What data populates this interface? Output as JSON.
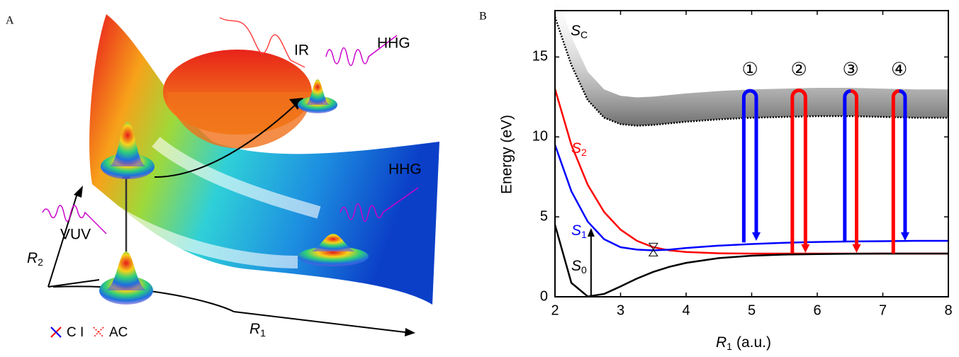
{
  "illustration": {
    "panel_label": "A",
    "ir": "IR",
    "hhg_top": "HHG",
    "hhg_bottom": "HHG",
    "vuv": "VUV",
    "r2": "R",
    "r2_sub": "2",
    "r1": "R",
    "r1_sub": "1",
    "ci": "C I",
    "ac": "AC"
  },
  "chart_data": {
    "type": "line",
    "panel_label": "B",
    "ylabel": "Energy (eV)",
    "xlabel": "R",
    "xlabel_sub": "1",
    "xlabel_unit": "(a.u.)",
    "xlim": [
      2,
      8
    ],
    "ylim": [
      0,
      17.9
    ],
    "xticks": [
      2,
      3,
      4,
      5,
      6,
      7,
      8
    ],
    "yticks": [
      0,
      5,
      10,
      15
    ],
    "x": [
      2,
      2.25,
      2.5,
      2.75,
      3,
      3.25,
      3.5,
      3.75,
      4,
      4.5,
      5,
      5.5,
      6,
      6.5,
      7,
      7.5,
      8
    ],
    "series": [
      {
        "name": "S",
        "sub": "C",
        "color": "#000000",
        "dashed": true,
        "values": [
          17.5,
          14.5,
          12.3,
          11.2,
          10.8,
          10.7,
          10.75,
          10.85,
          10.95,
          11.1,
          11.2,
          11.25,
          11.3,
          11.3,
          11.25,
          11.2,
          11.2
        ]
      },
      {
        "name": "S",
        "sub": "2",
        "color": "#ff0000",
        "values": [
          13,
          9.5,
          7.0,
          5.3,
          4.2,
          3.5,
          3.1,
          2.9,
          2.8,
          2.72,
          2.7,
          2.7,
          2.7,
          2.7,
          2.7,
          2.7,
          2.7
        ]
      },
      {
        "name": "S",
        "sub": "1",
        "color": "#0000ff",
        "values": [
          9.5,
          6.6,
          4.7,
          3.6,
          3.1,
          2.95,
          2.9,
          2.95,
          3.05,
          3.2,
          3.3,
          3.38,
          3.43,
          3.46,
          3.48,
          3.5,
          3.5
        ]
      },
      {
        "name": "S",
        "sub": "0",
        "color": "#000000",
        "values": [
          4.5,
          0.87,
          0.02,
          0.18,
          0.65,
          1.14,
          1.56,
          1.88,
          2.12,
          2.42,
          2.57,
          2.64,
          2.67,
          2.69,
          2.7,
          2.7,
          2.7
        ]
      }
    ],
    "transitions": [
      {
        "label": "①",
        "x_up": 4.88,
        "x_down": 5.07,
        "y_from": 3.4,
        "y_top": 12.5,
        "y_to": 3.5,
        "color_up": "#0000ff",
        "color_down": "#0000ff"
      },
      {
        "label": "②",
        "x_up": 5.62,
        "x_down": 5.82,
        "y_from": 2.7,
        "y_top": 12.5,
        "y_to": 2.75,
        "color_up": "#ff0000",
        "color_down": "#ff0000"
      },
      {
        "label": "③",
        "x_up": 6.42,
        "x_down": 6.6,
        "y_from": 3.45,
        "y_top": 12.5,
        "y_to": 2.75,
        "color_up": "#0000ff",
        "color_down": "#ff0000"
      },
      {
        "label": "④",
        "x_up": 7.16,
        "x_down": 7.34,
        "y_from": 2.7,
        "y_top": 12.5,
        "y_to": 3.5,
        "color_up": "#ff0000",
        "color_down": "#0000ff"
      }
    ],
    "excitation": {
      "x": 2.55,
      "from": 0,
      "to": 4.3
    },
    "crossing": {
      "x": 3.5,
      "y": 2.95
    }
  }
}
